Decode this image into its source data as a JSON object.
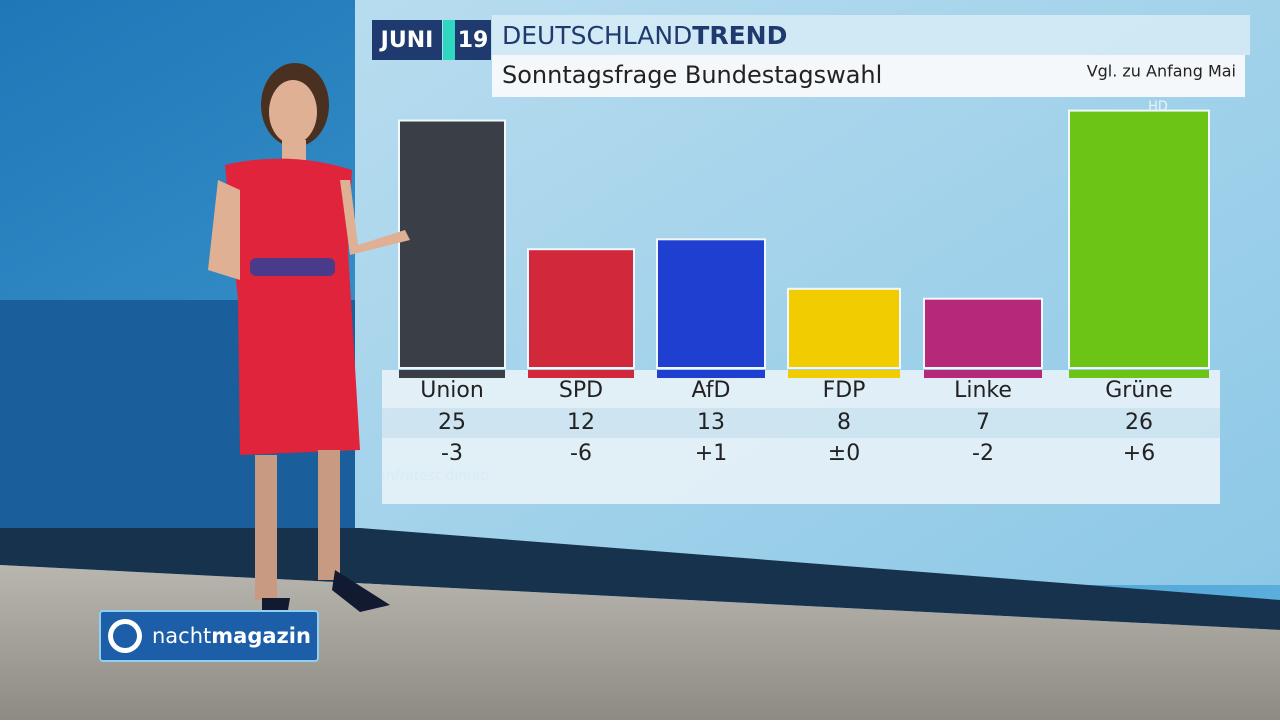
{
  "header": {
    "month": "JUNI",
    "year": "19",
    "brand_light": "DEUTSCHLAND",
    "brand_bold": "TREND",
    "comparison_note": "Vgl. zu Anfang Mai",
    "hd": "HD"
  },
  "chart_data": {
    "type": "bar",
    "title": "Sonntagsfrage Bundestagswahl",
    "categories": [
      "Union",
      "SPD",
      "AfD",
      "FDP",
      "Linke",
      "Grüne"
    ],
    "values": [
      25,
      12,
      13,
      8,
      7,
      26
    ],
    "colors": [
      "#3a3f47",
      "#d2283c",
      "#1f3fd0",
      "#f0cc00",
      "#b5287a",
      "#6cc417"
    ],
    "change_labels": [
      "-3",
      "-6",
      "+1",
      "±0",
      "-2",
      "+6"
    ],
    "source": "infratest dimap"
  },
  "logo": {
    "light": "nacht",
    "bold": "magazin"
  }
}
